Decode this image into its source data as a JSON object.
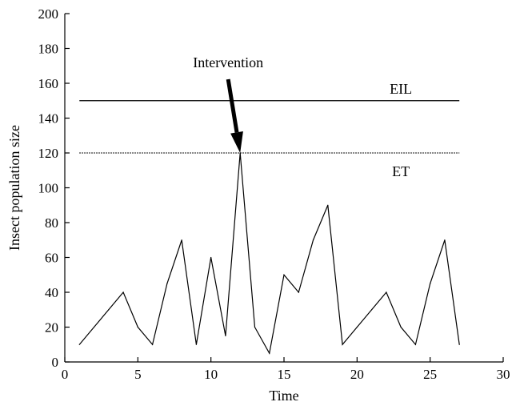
{
  "chart_data": {
    "type": "line",
    "title": "",
    "xlabel": "Time",
    "ylabel": "Insect population size",
    "xlim": [
      0,
      30
    ],
    "ylim": [
      0,
      200
    ],
    "xticks": [
      0,
      5,
      10,
      15,
      20,
      25,
      30
    ],
    "yticks": [
      0,
      20,
      40,
      60,
      80,
      100,
      120,
      140,
      160,
      180,
      200
    ],
    "grid": false,
    "series": [
      {
        "x": [
          1,
          2,
          3,
          4,
          5,
          6,
          7,
          8,
          9,
          10,
          11,
          12,
          13,
          14,
          15,
          16,
          17,
          18,
          19,
          20,
          21,
          22,
          23,
          24,
          25,
          26,
          27
        ],
        "y": [
          10,
          20,
          30,
          40,
          20,
          10,
          45,
          70,
          10,
          60,
          15,
          120,
          20,
          5,
          50,
          40,
          70,
          90,
          10,
          20,
          30,
          40,
          20,
          10,
          45,
          70,
          10
        ],
        "color": "#000000"
      }
    ],
    "reference_lines": [
      {
        "label": "EIL",
        "y": 150,
        "x_range": [
          1,
          27
        ],
        "style": "solid"
      },
      {
        "label": "ET",
        "y": 120,
        "x_range": [
          1,
          27
        ],
        "style": "dotted"
      }
    ],
    "annotations": [
      {
        "text": "Intervention",
        "points_to": {
          "x": 12,
          "y": 120
        }
      }
    ]
  }
}
